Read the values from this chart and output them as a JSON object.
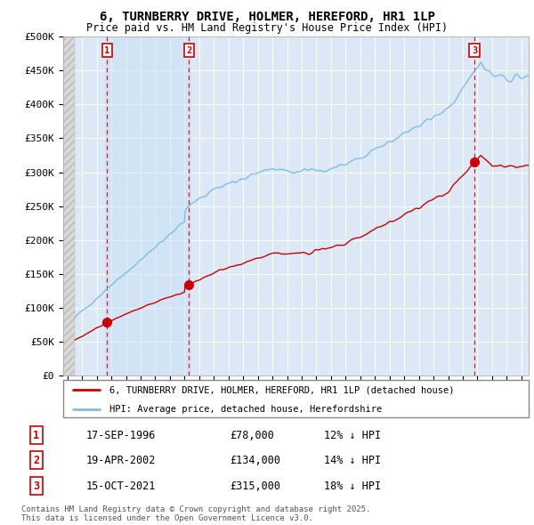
{
  "title_line1": "6, TURNBERRY DRIVE, HOLMER, HEREFORD, HR1 1LP",
  "title_line2": "Price paid vs. HM Land Registry's House Price Index (HPI)",
  "ylim": [
    0,
    500000
  ],
  "yticks": [
    0,
    50000,
    100000,
    150000,
    200000,
    250000,
    300000,
    350000,
    400000,
    450000,
    500000
  ],
  "ytick_labels": [
    "£0",
    "£50K",
    "£100K",
    "£150K",
    "£200K",
    "£250K",
    "£300K",
    "£350K",
    "£400K",
    "£450K",
    "£500K"
  ],
  "xlim_start": 1993.7,
  "xlim_end": 2025.5,
  "sales": [
    {
      "label": "1",
      "date": 1996.72,
      "price": 78000,
      "date_str": "17-SEP-1996",
      "price_str": "£78,000",
      "hpi_str": "12% ↓ HPI"
    },
    {
      "label": "2",
      "date": 2002.3,
      "price": 134000,
      "date_str": "19-APR-2002",
      "price_str": "£134,000",
      "hpi_str": "14% ↓ HPI"
    },
    {
      "label": "3",
      "date": 2021.79,
      "price": 315000,
      "date_str": "15-OCT-2021",
      "price_str": "£315,000",
      "hpi_str": "18% ↓ HPI"
    }
  ],
  "hpi_color": "#7bbfe8",
  "sale_color": "#cc0000",
  "chart_bg": "#dce8f5",
  "grid_color": "#ffffff",
  "legend_line1": "6, TURNBERRY DRIVE, HOLMER, HEREFORD, HR1 1LP (detached house)",
  "legend_line2": "HPI: Average price, detached house, Herefordshire",
  "copyright": "Contains HM Land Registry data © Crown copyright and database right 2025.\nThis data is licensed under the Open Government Licence v3.0.",
  "hatch_end": 1994.5,
  "sale_region_shade": "#cfe0f0"
}
